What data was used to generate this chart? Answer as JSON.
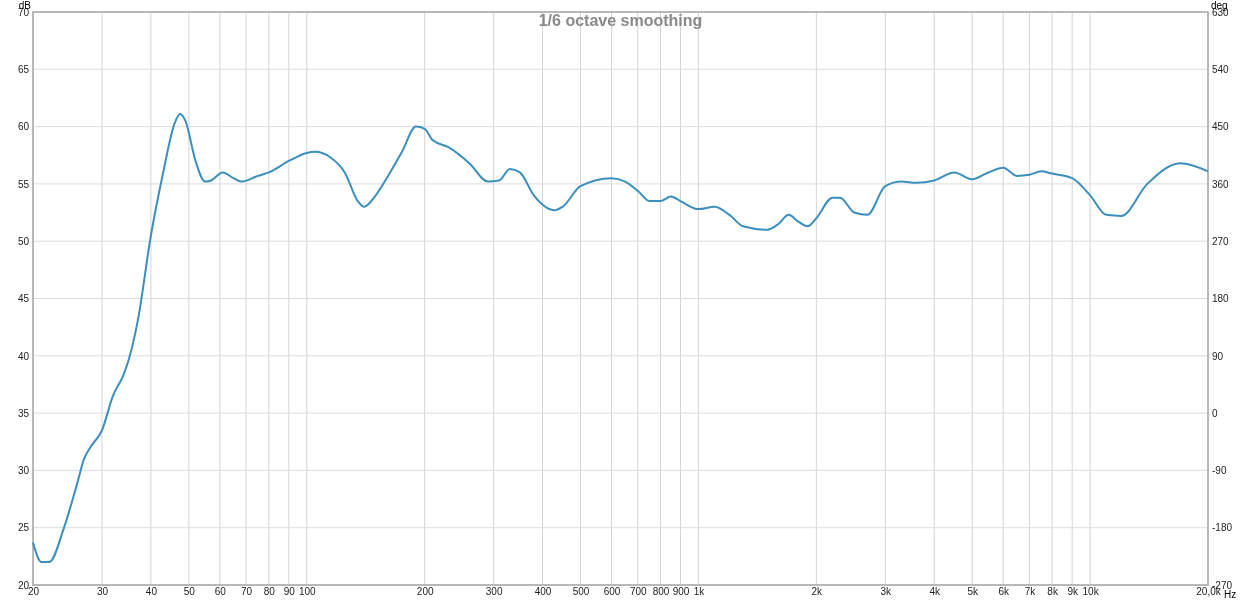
{
  "chart_data": {
    "type": "line",
    "title": "1/6 octave smoothing",
    "xlabel": "Hz",
    "ylabel": "dB",
    "y2label": "deg",
    "log": "x",
    "grid": true,
    "marker": "none",
    "line_style": "solid",
    "xlim": [
      20,
      20000
    ],
    "xticks": [
      20,
      30,
      40,
      50,
      60,
      70,
      80,
      90,
      100,
      200,
      300,
      400,
      500,
      600,
      700,
      800,
      900,
      {
        "value": 1000,
        "label": "1k"
      },
      {
        "value": 2000,
        "label": "2k"
      },
      {
        "value": 3000,
        "label": "3k"
      },
      {
        "value": 4000,
        "label": "4k"
      },
      {
        "value": 5000,
        "label": "5k"
      },
      {
        "value": 6000,
        "label": "6k"
      },
      {
        "value": 7000,
        "label": "7k"
      },
      {
        "value": 8000,
        "label": "8k"
      },
      {
        "value": 9000,
        "label": "9k"
      },
      {
        "value": 10000,
        "label": "10k"
      },
      {
        "value": 20000,
        "label": "20,0k"
      }
    ],
    "ylim": [
      20,
      70
    ],
    "yticks": [
      20,
      25,
      30,
      35,
      40,
      45,
      50,
      55,
      60,
      65,
      70
    ],
    "y2lim": [
      -270,
      630
    ],
    "y2ticks": [
      -270,
      -180,
      -90,
      0,
      90,
      180,
      270,
      360,
      450,
      540,
      630
    ],
    "x": [
      20,
      21,
      22,
      24,
      26,
      27,
      28,
      30,
      32,
      34,
      35,
      37,
      40,
      43,
      46,
      47.5,
      49,
      52,
      55,
      57,
      61,
      65,
      68,
      75,
      80,
      90,
      100,
      105,
      115,
      125,
      135,
      140,
      150,
      160,
      175,
      190,
      200,
      210,
      230,
      260,
      290,
      310,
      330,
      350,
      380,
      430,
      450,
      500,
      600,
      650,
      700,
      750,
      800,
      850,
      900,
      1000,
      1100,
      1200,
      1300,
      1500,
      1600,
      1700,
      1800,
      1900,
      2000,
      2200,
      2300,
      2500,
      2700,
      3000,
      3300,
      3600,
      4000,
      4500,
      5000,
      5500,
      6000,
      6500,
      7000,
      7500,
      8000,
      9000,
      10000,
      11000,
      12000,
      14000,
      17000,
      20000
    ],
    "series": [
      {
        "color": "#3a8fbf",
        "values": [
          23.7,
          22.0,
          22.0,
          25,
          29,
          31,
          32,
          33.5,
          36.5,
          38.3,
          39.5,
          43,
          50.5,
          56,
          60.3,
          61.1,
          60.5,
          57,
          55.2,
          55.3,
          56.0,
          55.5,
          55.2,
          55.7,
          56.0,
          57.0,
          57.7,
          57.8,
          57.3,
          56,
          53.5,
          53,
          54,
          55.5,
          57.8,
          60,
          59.8,
          58.8,
          58.2,
          56.8,
          55.2,
          55.3,
          56.3,
          56,
          54,
          52.7,
          53,
          54.8,
          55.5,
          55.2,
          54.4,
          53.5,
          53.5,
          53.9,
          53.5,
          52.8,
          53,
          52.3,
          51.3,
          51.0,
          51.5,
          52.3,
          51.7,
          51.3,
          52,
          53.8,
          53.8,
          52.5,
          52.3,
          54.8,
          55.2,
          55.1,
          55.3,
          56,
          55.4,
          56,
          56.4,
          55.7,
          55.8,
          56.1,
          55.9,
          55.5,
          54,
          52.3,
          52.2,
          55,
          56.8,
          56.1
        ]
      }
    ]
  }
}
